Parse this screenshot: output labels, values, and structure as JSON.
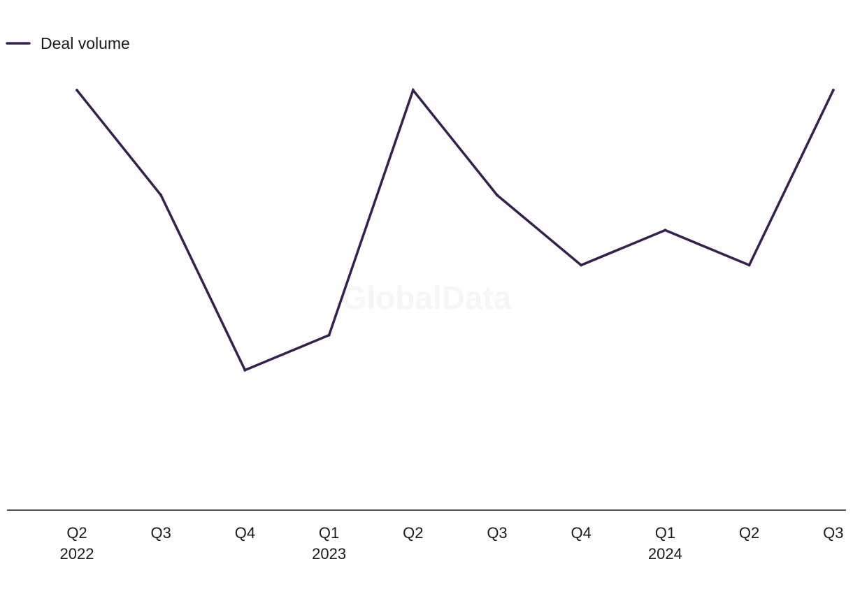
{
  "watermark": "GlobalData",
  "chart_data": {
    "type": "line",
    "categories": [
      "Q2",
      "Q3",
      "Q4",
      "Q1",
      "Q2",
      "Q3",
      "Q4",
      "Q1",
      "Q2",
      "Q3"
    ],
    "year_labels": [
      "2022",
      "",
      "",
      "2023",
      "",
      "",
      "",
      "2024",
      "",
      ""
    ],
    "series": [
      {
        "name": "Deal volume",
        "color": "#35204f",
        "values": [
          12,
          9,
          4,
          5,
          12,
          9,
          7,
          8,
          7,
          12
        ]
      }
    ],
    "ylim": [
      0,
      12
    ],
    "grid": false,
    "legend_position": "top-left",
    "title": "",
    "xlabel": "",
    "ylabel": ""
  }
}
